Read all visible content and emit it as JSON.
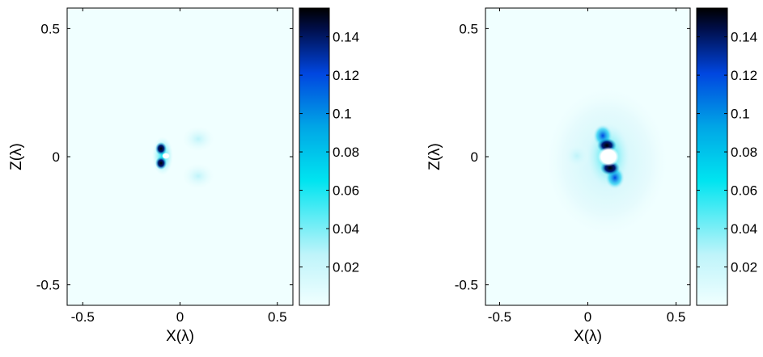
{
  "chart_data": [
    {
      "type": "heatmap",
      "title": "",
      "xlabel": "X(λ)",
      "ylabel": "Z(λ)",
      "xlim": [
        -0.58,
        0.58
      ],
      "ylim": [
        -0.58,
        0.58
      ],
      "x_ticks": [
        -0.5,
        0,
        0.5
      ],
      "x_tick_labels": [
        "-0.5",
        "0",
        "0.5"
      ],
      "y_ticks": [
        0.5,
        0,
        -0.5
      ],
      "y_tick_labels": [
        "0.5",
        "0",
        "-0.5"
      ],
      "colorbar": {
        "range": [
          0,
          0.155
        ],
        "ticks": [
          0.14,
          0.12,
          0.1,
          0.08,
          0.06,
          0.04,
          0.02
        ],
        "tick_labels": [
          "0.14",
          "0.12",
          "0.1",
          "0.08",
          "0.06",
          "0.04",
          "0.02"
        ]
      },
      "colormap": [
        "#f0ffff",
        "#bff4fa",
        "#00e4f0",
        "#00a6e6",
        "#0046e0",
        "#000e4a",
        "#000000"
      ],
      "hotspots": [
        {
          "x": -0.105,
          "z": 0.03,
          "value": 0.15
        },
        {
          "x": -0.105,
          "z": -0.03,
          "value": 0.15
        },
        {
          "x": -0.06,
          "z": 0.0,
          "value": 0.04
        },
        {
          "x": 0.1,
          "z": 0.1,
          "value": 0.02
        },
        {
          "x": 0.1,
          "z": -0.1,
          "value": 0.02
        },
        {
          "x": 0.08,
          "z": 0.0,
          "value": 0.01
        }
      ]
    },
    {
      "type": "heatmap",
      "title": "",
      "xlabel": "X(λ)",
      "ylabel": "Z(λ)",
      "xlim": [
        -0.58,
        0.58
      ],
      "ylim": [
        -0.58,
        0.58
      ],
      "x_ticks": [
        -0.5,
        0,
        0.5
      ],
      "x_tick_labels": [
        "-0.5",
        "0",
        "0.5"
      ],
      "y_ticks": [
        0.5,
        0,
        -0.5
      ],
      "y_tick_labels": [
        "0.5",
        "0",
        "-0.5"
      ],
      "colorbar": {
        "range": [
          0,
          0.155
        ],
        "ticks": [
          0.14,
          0.12,
          0.1,
          0.08,
          0.06,
          0.04,
          0.02
        ],
        "tick_labels": [
          "0.14",
          "0.12",
          "0.1",
          "0.08",
          "0.06",
          "0.04",
          "0.02"
        ]
      },
      "colormap": [
        "#f0ffff",
        "#bff4fa",
        "#00e4f0",
        "#00a6e6",
        "#0046e0",
        "#000e4a",
        "#000000"
      ],
      "hotspots": [
        {
          "x": 0.1,
          "z": 0.08,
          "value": 0.15
        },
        {
          "x": 0.1,
          "z": -0.08,
          "value": 0.15
        },
        {
          "x": 0.05,
          "z": 0.12,
          "value": 0.08
        },
        {
          "x": 0.15,
          "z": -0.12,
          "value": 0.08
        },
        {
          "x": -0.05,
          "z": 0.0,
          "value": 0.03
        },
        {
          "x": 0.1,
          "z": 0.0,
          "value": 0.02
        }
      ]
    }
  ]
}
